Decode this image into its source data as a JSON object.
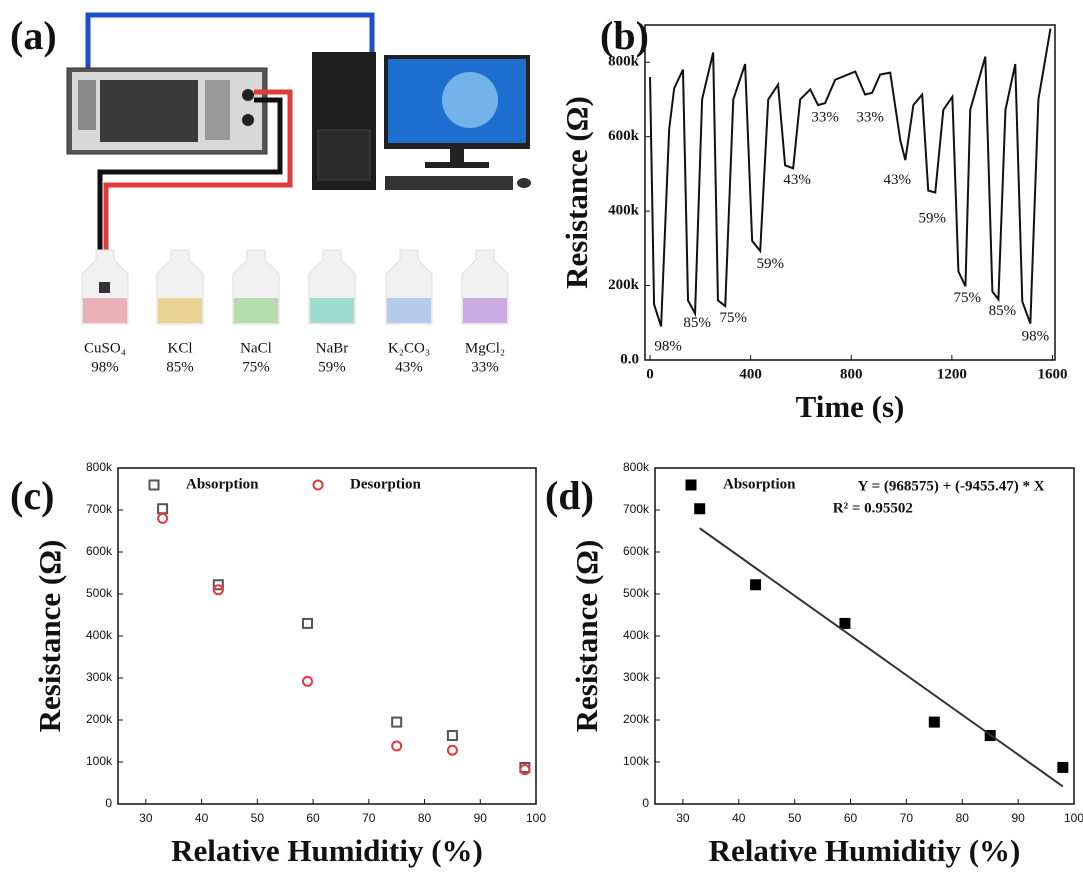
{
  "panel_a": {
    "label": "(a)",
    "solutions": [
      {
        "name": "CuSO₄",
        "humidity": "98%",
        "color": "#e9a6ad"
      },
      {
        "name": "KCl",
        "humidity": "85%",
        "color": "#e8cf86"
      },
      {
        "name": "NaCl",
        "humidity": "75%",
        "color": "#a9d8a0"
      },
      {
        "name": "NaBr",
        "humidity": "59%",
        "color": "#8fd8c8"
      },
      {
        "name": "K₂CO₃",
        "humidity": "43%",
        "color": "#a9c4ea"
      },
      {
        "name": "MgCl₂",
        "humidity": "33%",
        "color": "#c3a0e0"
      }
    ]
  },
  "chart_data": [
    {
      "type": "line",
      "panel_label": "(b)",
      "xlabel": "Time (s)",
      "ylabel": "Resistance (Ω)",
      "color": "#111111",
      "x": [
        0,
        16,
        44,
        76,
        96,
        131,
        151,
        179,
        207,
        251,
        270,
        299,
        331,
        378,
        406,
        438,
        470,
        509,
        537,
        569,
        597,
        637,
        668,
        696,
        736,
        816,
        855,
        883,
        915,
        955,
        995,
        1015,
        1047,
        1082,
        1106,
        1134,
        1166,
        1202,
        1226,
        1254,
        1273,
        1333,
        1361,
        1385,
        1413,
        1452,
        1480,
        1512,
        1544,
        1592
      ],
      "values": [
        760000,
        150000,
        90000,
        620000,
        730000,
        780000,
        160000,
        125000,
        700000,
        826000,
        160000,
        145000,
        700000,
        795000,
        320000,
        293000,
        700000,
        740000,
        523000,
        515000,
        700000,
        727000,
        685000,
        690000,
        753000,
        775000,
        713000,
        718000,
        767000,
        772000,
        590000,
        537000,
        685000,
        713000,
        455000,
        450000,
        672000,
        707000,
        238000,
        198000,
        672000,
        815000,
        184000,
        163000,
        672000,
        795000,
        157000,
        98000,
        700000,
        890000
      ],
      "xlim": [
        -20,
        1610
      ],
      "ylim": [
        0,
        900000
      ],
      "xticks": [
        0,
        400,
        800,
        1200,
        1600
      ],
      "yticks": [
        {
          "value": 0,
          "label": "0.0"
        },
        {
          "value": 200000,
          "label": "200k"
        },
        {
          "value": 400000,
          "label": "400k"
        },
        {
          "value": 600000,
          "label": "600k"
        },
        {
          "value": 800000,
          "label": "800k"
        }
      ],
      "annotations": [
        {
          "text": "98%",
          "x": 72,
          "y": 35000
        },
        {
          "text": "85%",
          "x": 187,
          "y": 98000
        },
        {
          "text": "75%",
          "x": 331,
          "y": 111000
        },
        {
          "text": "59%",
          "x": 478,
          "y": 257000
        },
        {
          "text": "43%",
          "x": 585,
          "y": 482000
        },
        {
          "text": "33%",
          "x": 696,
          "y": 650000
        },
        {
          "text": "33%",
          "x": 875,
          "y": 650000
        },
        {
          "text": "43%",
          "x": 983,
          "y": 482000
        },
        {
          "text": "59%",
          "x": 1122,
          "y": 379000
        },
        {
          "text": "75%",
          "x": 1261,
          "y": 165000
        },
        {
          "text": "85%",
          "x": 1401,
          "y": 130000
        },
        {
          "text": "98%",
          "x": 1532,
          "y": 62000
        }
      ]
    },
    {
      "type": "scatter",
      "panel_label": "(c)",
      "xlabel": "Relative Humiditiy (%)",
      "ylabel": "Resistance (Ω)",
      "legend": "upper left",
      "series": [
        {
          "name": "Absorption",
          "color": "#555555",
          "marker": "square",
          "filled": false,
          "x": [
            33,
            43,
            59,
            75,
            85,
            98
          ],
          "values": [
            703000,
            522000,
            430000,
            195000,
            163000,
            87000
          ]
        },
        {
          "name": "Desorption",
          "color": "#e8383d",
          "marker": "circle",
          "filled": false,
          "x": [
            33,
            43,
            59,
            75,
            85,
            98
          ],
          "values": [
            680000,
            510000,
            292000,
            138000,
            128000,
            82000
          ]
        }
      ],
      "xlim": [
        25,
        100
      ],
      "ylim": [
        0,
        800000
      ],
      "xticks": [
        30,
        40,
        50,
        60,
        70,
        80,
        90,
        100
      ],
      "yticks": [
        0,
        {
          "value": 100000,
          "label": "100k"
        },
        {
          "value": 200000,
          "label": "200k"
        },
        {
          "value": 300000,
          "label": "300k"
        },
        {
          "value": 400000,
          "label": "400k"
        },
        {
          "value": 500000,
          "label": "500k"
        },
        {
          "value": 600000,
          "label": "600k"
        },
        {
          "value": 700000,
          "label": "700k"
        },
        {
          "value": 800000,
          "label": "800k"
        }
      ]
    },
    {
      "type": "scatter",
      "panel_label": "(d)",
      "xlabel": "Relative Humiditiy (%)",
      "ylabel": "Resistance (Ω)",
      "legend": "upper left",
      "series": [
        {
          "name": "Absorption",
          "color": "#000000",
          "marker": "square",
          "filled": true,
          "x": [
            33,
            43,
            59,
            75,
            85,
            98
          ],
          "values": [
            703000,
            522000,
            430000,
            195000,
            163000,
            87000
          ]
        }
      ],
      "fit_line": {
        "color": "#333333",
        "x": [
          33,
          98
        ],
        "values": [
          656545,
          41939
        ]
      },
      "annotations": [
        {
          "text": "Y = (968575) + (-9455.47) * X",
          "x": 78,
          "y": 755000
        },
        {
          "text": "R² = 0.95502",
          "x": 64,
          "y": 702000
        }
      ],
      "xlim": [
        25,
        100
      ],
      "ylim": [
        0,
        800000
      ],
      "xticks": [
        30,
        40,
        50,
        60,
        70,
        80,
        90,
        100
      ],
      "yticks": [
        0,
        {
          "value": 100000,
          "label": "100k"
        },
        {
          "value": 200000,
          "label": "200k"
        },
        {
          "value": 300000,
          "label": "300k"
        },
        {
          "value": 400000,
          "label": "400k"
        },
        {
          "value": 500000,
          "label": "500k"
        },
        {
          "value": 600000,
          "label": "600k"
        },
        {
          "value": 700000,
          "label": "700k"
        },
        {
          "value": 800000,
          "label": "800k"
        }
      ]
    }
  ]
}
